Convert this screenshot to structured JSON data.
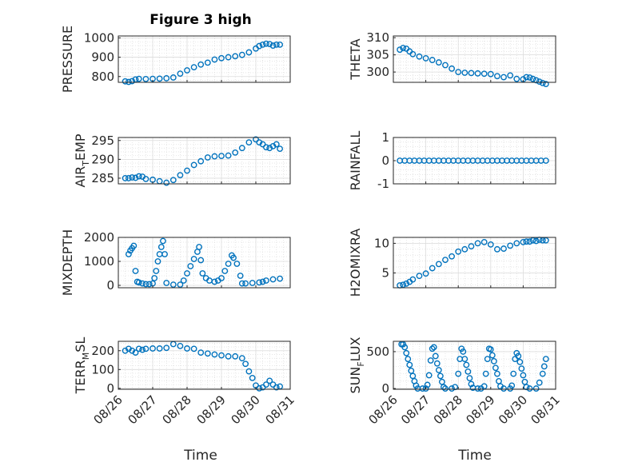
{
  "figure": {
    "title": "Figure 3 high",
    "xlabel": "Time"
  },
  "chart_data": [
    {
      "type": "scatter",
      "ylabel": "PRESSURE",
      "ylim": [
        770,
        1010
      ],
      "yticks": [
        "800",
        "900",
        "1000"
      ],
      "ytick_values": [
        800,
        900,
        1000
      ],
      "x_start": "08/26",
      "xlim": [
        0,
        5
      ],
      "xtick_labels": [
        "08/26",
        "08/27",
        "08/28",
        "08/29",
        "08/30",
        "08/31"
      ],
      "points": [
        [
          0.2,
          775
        ],
        [
          0.3,
          772
        ],
        [
          0.4,
          776
        ],
        [
          0.5,
          785
        ],
        [
          0.6,
          788
        ],
        [
          0.8,
          787
        ],
        [
          1.0,
          788
        ],
        [
          1.2,
          789
        ],
        [
          1.4,
          791
        ],
        [
          1.6,
          795
        ],
        [
          1.8,
          815
        ],
        [
          2.0,
          832
        ],
        [
          2.2,
          848
        ],
        [
          2.4,
          862
        ],
        [
          2.6,
          872
        ],
        [
          2.8,
          888
        ],
        [
          3.0,
          895
        ],
        [
          3.2,
          900
        ],
        [
          3.4,
          905
        ],
        [
          3.6,
          912
        ],
        [
          3.8,
          925
        ],
        [
          4.0,
          945
        ],
        [
          4.1,
          958
        ],
        [
          4.2,
          965
        ],
        [
          4.3,
          970
        ],
        [
          4.4,
          968
        ],
        [
          4.5,
          960
        ],
        [
          4.6,
          965
        ],
        [
          4.7,
          965
        ]
      ]
    },
    {
      "type": "scatter",
      "ylabel": "THETA",
      "ylim": [
        297,
        310.5
      ],
      "yticks": [
        "300",
        "305",
        "310"
      ],
      "ytick_values": [
        300,
        305,
        310
      ],
      "x_start": "08/26",
      "xlim": [
        0,
        5
      ],
      "xtick_labels": [
        "08/26",
        "08/27",
        "08/28",
        "08/29",
        "08/30",
        "08/31"
      ],
      "points": [
        [
          0.2,
          306.5
        ],
        [
          0.3,
          307
        ],
        [
          0.4,
          306.8
        ],
        [
          0.5,
          306
        ],
        [
          0.6,
          305.2
        ],
        [
          0.8,
          304.5
        ],
        [
          1.0,
          304
        ],
        [
          1.2,
          303.5
        ],
        [
          1.4,
          302.8
        ],
        [
          1.6,
          302
        ],
        [
          1.8,
          301
        ],
        [
          2.0,
          300
        ],
        [
          2.2,
          299.8
        ],
        [
          2.4,
          299.7
        ],
        [
          2.6,
          299.6
        ],
        [
          2.8,
          299.5
        ],
        [
          3.0,
          299.4
        ],
        [
          3.2,
          298.8
        ],
        [
          3.4,
          298.5
        ],
        [
          3.6,
          299
        ],
        [
          3.8,
          298
        ],
        [
          4.0,
          297.9
        ],
        [
          4.1,
          298.5
        ],
        [
          4.2,
          298.4
        ],
        [
          4.3,
          298
        ],
        [
          4.4,
          297.6
        ],
        [
          4.5,
          297.2
        ],
        [
          4.6,
          296.8
        ],
        [
          4.7,
          296.5
        ]
      ]
    },
    {
      "type": "scatter",
      "ylabel": "AIR",
      "ylabel_sub": "T",
      "ylabel_rest": "EMP",
      "ylim": [
        283.5,
        295.8
      ],
      "yticks": [
        "285",
        "290",
        "295"
      ],
      "ytick_values": [
        285,
        290,
        295
      ],
      "x_start": "08/26",
      "xlim": [
        0,
        5
      ],
      "xtick_labels": [
        "08/26",
        "08/27",
        "08/28",
        "08/29",
        "08/30",
        "08/31"
      ],
      "points": [
        [
          0.2,
          285
        ],
        [
          0.3,
          285
        ],
        [
          0.4,
          285.2
        ],
        [
          0.5,
          285.1
        ],
        [
          0.6,
          285.5
        ],
        [
          0.7,
          285.4
        ],
        [
          0.8,
          284.8
        ],
        [
          1.0,
          284.6
        ],
        [
          1.2,
          284.2
        ],
        [
          1.4,
          283.8
        ],
        [
          1.6,
          284.5
        ],
        [
          1.8,
          285.8
        ],
        [
          2.0,
          287
        ],
        [
          2.2,
          288.5
        ],
        [
          2.4,
          289.5
        ],
        [
          2.6,
          290.5
        ],
        [
          2.8,
          290.8
        ],
        [
          3.0,
          290.9
        ],
        [
          3.2,
          291
        ],
        [
          3.4,
          291.8
        ],
        [
          3.6,
          293
        ],
        [
          3.8,
          294.5
        ],
        [
          4.0,
          295.3
        ],
        [
          4.1,
          294.5
        ],
        [
          4.2,
          294
        ],
        [
          4.3,
          293.2
        ],
        [
          4.4,
          293
        ],
        [
          4.5,
          293.5
        ],
        [
          4.6,
          294
        ],
        [
          4.7,
          292.8
        ]
      ]
    },
    {
      "type": "scatter",
      "ylabel": "RAINFALL",
      "ylim": [
        -1,
        1
      ],
      "yticks": [
        "-1",
        "0",
        "1"
      ],
      "ytick_values": [
        -1,
        0,
        1
      ],
      "x_start": "08/26",
      "xlim": [
        0,
        5
      ],
      "xtick_labels": [
        "08/26",
        "08/27",
        "08/28",
        "08/29",
        "08/30",
        "08/31"
      ],
      "points": [
        [
          0.2,
          0
        ],
        [
          0.35,
          0
        ],
        [
          0.5,
          0
        ],
        [
          0.65,
          0
        ],
        [
          0.8,
          0
        ],
        [
          0.95,
          0
        ],
        [
          1.1,
          0
        ],
        [
          1.25,
          0
        ],
        [
          1.4,
          0
        ],
        [
          1.55,
          0
        ],
        [
          1.7,
          0
        ],
        [
          1.85,
          0
        ],
        [
          2.0,
          0
        ],
        [
          2.15,
          0
        ],
        [
          2.3,
          0
        ],
        [
          2.45,
          0
        ],
        [
          2.6,
          0
        ],
        [
          2.75,
          0
        ],
        [
          2.9,
          0
        ],
        [
          3.05,
          0
        ],
        [
          3.2,
          0
        ],
        [
          3.35,
          0
        ],
        [
          3.5,
          0
        ],
        [
          3.65,
          0
        ],
        [
          3.8,
          0
        ],
        [
          3.95,
          0
        ],
        [
          4.1,
          0
        ],
        [
          4.25,
          0
        ],
        [
          4.4,
          0
        ],
        [
          4.55,
          0
        ],
        [
          4.7,
          0
        ]
      ]
    },
    {
      "type": "scatter",
      "ylabel": "MIXDEPTH",
      "ylim": [
        -100,
        2000
      ],
      "yticks": [
        "0",
        "1000",
        "2000"
      ],
      "ytick_values": [
        0,
        1000,
        2000
      ],
      "x_start": "08/26",
      "xlim": [
        0,
        5
      ],
      "xtick_labels": [
        "08/26",
        "08/27",
        "08/28",
        "08/29",
        "08/30",
        "08/31"
      ],
      "points": [
        [
          0.3,
          1300
        ],
        [
          0.35,
          1450
        ],
        [
          0.4,
          1550
        ],
        [
          0.45,
          1650
        ],
        [
          0.5,
          600
        ],
        [
          0.55,
          150
        ],
        [
          0.6,
          120
        ],
        [
          0.7,
          80
        ],
        [
          0.8,
          50
        ],
        [
          0.9,
          50
        ],
        [
          1.0,
          80
        ],
        [
          1.05,
          300
        ],
        [
          1.1,
          600
        ],
        [
          1.15,
          1000
        ],
        [
          1.2,
          1300
        ],
        [
          1.25,
          1600
        ],
        [
          1.3,
          1850
        ],
        [
          1.35,
          1300
        ],
        [
          1.4,
          100
        ],
        [
          1.6,
          30
        ],
        [
          1.8,
          30
        ],
        [
          1.9,
          200
        ],
        [
          2.0,
          500
        ],
        [
          2.1,
          800
        ],
        [
          2.2,
          1100
        ],
        [
          2.3,
          1400
        ],
        [
          2.35,
          1600
        ],
        [
          2.4,
          1050
        ],
        [
          2.45,
          500
        ],
        [
          2.55,
          300
        ],
        [
          2.65,
          200
        ],
        [
          2.8,
          150
        ],
        [
          2.9,
          200
        ],
        [
          3.0,
          300
        ],
        [
          3.1,
          600
        ],
        [
          3.2,
          900
        ],
        [
          3.3,
          1250
        ],
        [
          3.35,
          1150
        ],
        [
          3.45,
          900
        ],
        [
          3.55,
          400
        ],
        [
          3.6,
          80
        ],
        [
          3.7,
          80
        ],
        [
          3.9,
          100
        ],
        [
          4.1,
          120
        ],
        [
          4.2,
          150
        ],
        [
          4.3,
          200
        ],
        [
          4.5,
          250
        ],
        [
          4.7,
          280
        ]
      ]
    },
    {
      "type": "scatter",
      "ylabel": "H2OMIXRA",
      "ylim": [
        2.5,
        11
      ],
      "yticks": [
        "5",
        "10"
      ],
      "ytick_values": [
        5,
        10
      ],
      "x_start": "08/26",
      "xlim": [
        0,
        5
      ],
      "xtick_labels": [
        "08/26",
        "08/27",
        "08/28",
        "08/29",
        "08/30",
        "08/31"
      ],
      "points": [
        [
          0.2,
          2.9
        ],
        [
          0.3,
          3
        ],
        [
          0.4,
          3.2
        ],
        [
          0.5,
          3.5
        ],
        [
          0.6,
          3.9
        ],
        [
          0.8,
          4.5
        ],
        [
          1.0,
          4.9
        ],
        [
          1.2,
          5.8
        ],
        [
          1.4,
          6.5
        ],
        [
          1.6,
          7.2
        ],
        [
          1.8,
          7.8
        ],
        [
          2.0,
          8.6
        ],
        [
          2.2,
          9
        ],
        [
          2.4,
          9.5
        ],
        [
          2.6,
          10
        ],
        [
          2.8,
          10.2
        ],
        [
          3.0,
          9.8
        ],
        [
          3.2,
          9
        ],
        [
          3.4,
          9.1
        ],
        [
          3.6,
          9.6
        ],
        [
          3.8,
          10
        ],
        [
          4.0,
          10.2
        ],
        [
          4.1,
          10.3
        ],
        [
          4.2,
          10.3
        ],
        [
          4.3,
          10.5
        ],
        [
          4.4,
          10.4
        ],
        [
          4.5,
          10.6
        ],
        [
          4.6,
          10.5
        ],
        [
          4.7,
          10.5
        ]
      ]
    },
    {
      "type": "scatter",
      "ylabel": "TERR",
      "ylabel_sub": "M",
      "ylabel_rest": "SL",
      "ylim": [
        -5,
        250
      ],
      "yticks": [
        "0",
        "100",
        "200"
      ],
      "ytick_values": [
        0,
        100,
        200
      ],
      "x_start": "08/26",
      "xlim": [
        0,
        5
      ],
      "xtick_labels": [
        "08/26",
        "08/27",
        "08/28",
        "08/29",
        "08/30",
        "08/31"
      ],
      "points": [
        [
          0.2,
          200
        ],
        [
          0.3,
          210
        ],
        [
          0.4,
          200
        ],
        [
          0.5,
          190
        ],
        [
          0.6,
          210
        ],
        [
          0.7,
          205
        ],
        [
          0.8,
          210
        ],
        [
          1.0,
          212
        ],
        [
          1.2,
          212
        ],
        [
          1.4,
          215
        ],
        [
          1.6,
          235
        ],
        [
          1.8,
          225
        ],
        [
          2.0,
          212
        ],
        [
          2.2,
          210
        ],
        [
          2.4,
          190
        ],
        [
          2.6,
          185
        ],
        [
          2.8,
          180
        ],
        [
          3.0,
          175
        ],
        [
          3.2,
          170
        ],
        [
          3.4,
          170
        ],
        [
          3.6,
          160
        ],
        [
          3.7,
          130
        ],
        [
          3.8,
          90
        ],
        [
          3.9,
          55
        ],
        [
          4.0,
          15
        ],
        [
          4.1,
          0
        ],
        [
          4.2,
          5
        ],
        [
          4.3,
          20
        ],
        [
          4.4,
          40
        ],
        [
          4.5,
          20
        ],
        [
          4.6,
          5
        ],
        [
          4.7,
          10
        ]
      ]
    },
    {
      "type": "scatter",
      "ylabel": "SUN",
      "ylabel_sub": "F",
      "ylabel_rest": "LUX",
      "ylim": [
        -10,
        640
      ],
      "yticks": [
        "0",
        "500"
      ],
      "ytick_values": [
        0,
        500
      ],
      "x_start": "08/26",
      "xlim": [
        0,
        5
      ],
      "xtick_labels": [
        "08/26",
        "08/27",
        "08/28",
        "08/29",
        "08/30",
        "08/31"
      ],
      "points": [
        [
          0.25,
          600
        ],
        [
          0.3,
          600
        ],
        [
          0.35,
          560
        ],
        [
          0.4,
          480
        ],
        [
          0.45,
          400
        ],
        [
          0.5,
          320
        ],
        [
          0.55,
          240
        ],
        [
          0.6,
          170
        ],
        [
          0.65,
          100
        ],
        [
          0.7,
          40
        ],
        [
          0.75,
          0
        ],
        [
          0.9,
          0
        ],
        [
          1.0,
          0
        ],
        [
          1.05,
          50
        ],
        [
          1.1,
          180
        ],
        [
          1.15,
          380
        ],
        [
          1.2,
          540
        ],
        [
          1.25,
          560
        ],
        [
          1.3,
          440
        ],
        [
          1.35,
          340
        ],
        [
          1.4,
          250
        ],
        [
          1.45,
          170
        ],
        [
          1.5,
          90
        ],
        [
          1.55,
          20
        ],
        [
          1.6,
          0
        ],
        [
          1.8,
          0
        ],
        [
          1.9,
          20
        ],
        [
          2.0,
          200
        ],
        [
          2.05,
          400
        ],
        [
          2.1,
          540
        ],
        [
          2.15,
          500
        ],
        [
          2.2,
          400
        ],
        [
          2.25,
          320
        ],
        [
          2.3,
          230
        ],
        [
          2.35,
          140
        ],
        [
          2.4,
          60
        ],
        [
          2.45,
          10
        ],
        [
          2.6,
          0
        ],
        [
          2.7,
          0
        ],
        [
          2.8,
          30
        ],
        [
          2.85,
          200
        ],
        [
          2.9,
          400
        ],
        [
          2.95,
          540
        ],
        [
          3.0,
          530
        ],
        [
          3.05,
          450
        ],
        [
          3.1,
          370
        ],
        [
          3.15,
          280
        ],
        [
          3.2,
          200
        ],
        [
          3.25,
          100
        ],
        [
          3.3,
          30
        ],
        [
          3.4,
          0
        ],
        [
          3.6,
          0
        ],
        [
          3.65,
          40
        ],
        [
          3.7,
          200
        ],
        [
          3.75,
          400
        ],
        [
          3.8,
          480
        ],
        [
          3.85,
          440
        ],
        [
          3.9,
          360
        ],
        [
          3.95,
          270
        ],
        [
          4.0,
          180
        ],
        [
          4.05,
          90
        ],
        [
          4.1,
          20
        ],
        [
          4.2,
          0
        ],
        [
          4.4,
          0
        ],
        [
          4.5,
          80
        ],
        [
          4.6,
          200
        ],
        [
          4.65,
          300
        ],
        [
          4.7,
          400
        ]
      ]
    }
  ]
}
